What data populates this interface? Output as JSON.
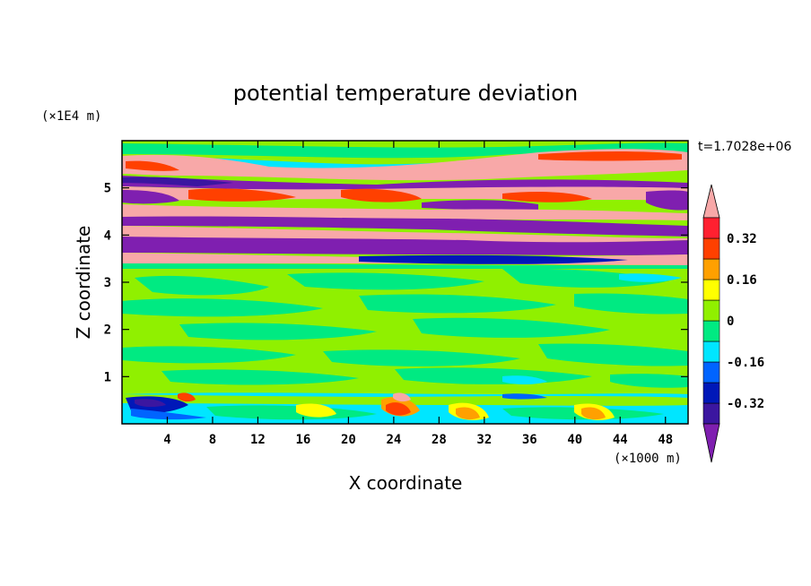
{
  "chart_data": {
    "type": "heatmap",
    "title": "potential temperature deviation",
    "xlabel": "X coordinate",
    "ylabel": "Z coordinate",
    "x_unit": "(×1000 m)",
    "y_unit": "(×1E4 m)",
    "time_stamp": "t=1.7028e+06",
    "xlim": [
      0,
      50
    ],
    "ylim": [
      0,
      6
    ],
    "x_ticks": [
      4,
      8,
      12,
      16,
      20,
      24,
      28,
      32,
      36,
      40,
      44,
      48
    ],
    "y_ticks": [
      1,
      2,
      3,
      4,
      5
    ],
    "colorbar": {
      "levels": [
        -0.4,
        -0.32,
        -0.24,
        -0.16,
        -0.08,
        0,
        0.08,
        0.16,
        0.24,
        0.32,
        0.4
      ],
      "labels": [
        "0.32",
        "0.16",
        "0",
        "-0.16",
        "-0.32"
      ],
      "label_values": [
        0.32,
        0.16,
        0,
        -0.16,
        -0.32
      ],
      "colors": [
        "#7f1fb0",
        "#3b16a0",
        "#0018b8",
        "#0064ff",
        "#00e6ff",
        "#00ea82",
        "#90f000",
        "#ffff00",
        "#ffa000",
        "#ff4000",
        "#ff2030",
        "#f8a8a8"
      ],
      "extend": "both"
    },
    "bands": [
      {
        "z_range": [
          5.8,
          6.0
        ],
        "level": "0 to 0.08"
      },
      {
        "z_range": [
          5.1,
          5.6
        ],
        "level": "> 0.4 / < -0.4 alternating"
      },
      {
        "z_range": [
          4.6,
          5.0
        ],
        "level": "> 0.4 / < -0.4 alternating"
      },
      {
        "z_range": [
          3.3,
          4.5
        ],
        "level": "> 0.4 / < -0.4 alternating"
      },
      {
        "z_range": [
          0.6,
          3.3
        ],
        "level": "-0.08 to 0.08"
      },
      {
        "z_range": [
          0.0,
          0.6
        ],
        "level": "-0.32 to 0.4 mixed"
      }
    ]
  }
}
